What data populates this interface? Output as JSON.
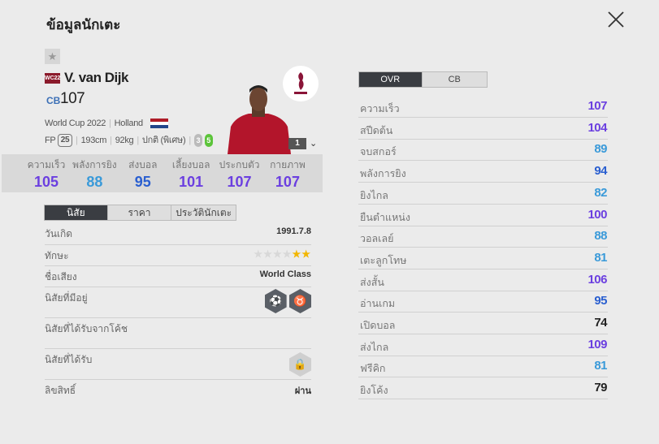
{
  "header": {
    "title": "ข้อมูลนักเตะ"
  },
  "player": {
    "season_badge": "WC22",
    "name": "V. van Dijk",
    "position": "CB",
    "ovr": "107",
    "season": "World Cup 2022",
    "nation": "Holland",
    "fp_label": "FP",
    "fp": "25",
    "height": "193cm",
    "weight": "92kg",
    "body_type": "ปกติ (พิเศษ)",
    "weak_foot_left": "3",
    "weak_foot_right": "5",
    "upgrade_level": "1"
  },
  "summary": [
    {
      "label": "ความเร็ว",
      "value": "105",
      "color": "#6b3fe0"
    },
    {
      "label": "พลังการยิง",
      "value": "88",
      "color": "#3a9ad9"
    },
    {
      "label": "ส่งบอล",
      "value": "95",
      "color": "#2a5fd0"
    },
    {
      "label": "เลี้ยงบอล",
      "value": "101",
      "color": "#6b3fe0"
    },
    {
      "label": "ประกบตัว",
      "value": "107",
      "color": "#6b3fe0"
    },
    {
      "label": "กายภาพ",
      "value": "107",
      "color": "#6b3fe0"
    }
  ],
  "left_tabs": [
    "นิสัย",
    "ราคา",
    "ประวัตินักเตะ"
  ],
  "info": {
    "birth_label": "วันเกิด",
    "birth": "1991.7.8",
    "skill_label": "ทักษะ",
    "skill_stars": 2,
    "skill_max": 6,
    "reputation_label": "ชื่อเสียง",
    "reputation": "World Class",
    "traits_label": "นิสัยที่มีอยู่",
    "traits_icons": [
      "long-shot-taker-icon",
      "bull-icon"
    ],
    "coach_traits_label": "นิสัยที่ได้รับจากโค้ช",
    "acquired_label": "นิสัยที่ได้รับ",
    "license_label": "ลิขสิทธิ์",
    "license": "ผ่าน"
  },
  "right_tabs": [
    "OVR",
    "CB"
  ],
  "stats": [
    {
      "label": "ความเร็ว",
      "value": "107",
      "color": "#6b3fe0"
    },
    {
      "label": "สปีดต้น",
      "value": "104",
      "color": "#6b3fe0"
    },
    {
      "label": "จบสกอร์",
      "value": "89",
      "color": "#3a9ad9"
    },
    {
      "label": "พลังการยิง",
      "value": "94",
      "color": "#2a5fd0"
    },
    {
      "label": "ยิงไกล",
      "value": "82",
      "color": "#3a9ad9"
    },
    {
      "label": "ยืนตำแหน่ง",
      "value": "100",
      "color": "#6b3fe0"
    },
    {
      "label": "วอลเลย์",
      "value": "88",
      "color": "#3a9ad9"
    },
    {
      "label": "เตะลูกโทษ",
      "value": "81",
      "color": "#3a9ad9"
    },
    {
      "label": "ส่งสั้น",
      "value": "106",
      "color": "#6b3fe0"
    },
    {
      "label": "อ่านเกม",
      "value": "95",
      "color": "#2a5fd0"
    },
    {
      "label": "เปิดบอล",
      "value": "74",
      "color": "#222222"
    },
    {
      "label": "ส่งไกล",
      "value": "109",
      "color": "#6b3fe0"
    },
    {
      "label": "ฟรีคิก",
      "value": "81",
      "color": "#3a9ad9"
    },
    {
      "label": "ยิงโค้ง",
      "value": "79",
      "color": "#222222"
    }
  ]
}
